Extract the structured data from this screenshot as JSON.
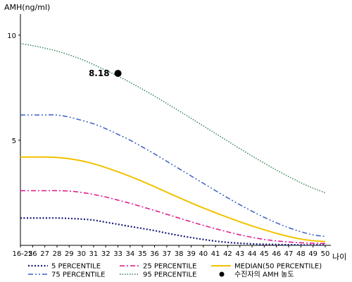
{
  "chart_data": {
    "type": "line",
    "ylabel": "AMH(ng/ml)",
    "xlabel": "나이",
    "ylim": [
      0,
      11
    ],
    "y_ticks": [
      {
        "value": 5,
        "label": "5"
      },
      {
        "value": 10,
        "label": "10"
      }
    ],
    "categories": [
      "16-25",
      "26",
      "27",
      "28",
      "29",
      "30",
      "31",
      "32",
      "33",
      "34",
      "35",
      "36",
      "37",
      "38",
      "39",
      "40",
      "41",
      "42",
      "43",
      "44",
      "45",
      "46",
      "47",
      "48",
      "49",
      "50"
    ],
    "series": [
      {
        "name": "5 PERCENTILE",
        "color": "#1a1a7a",
        "dash": "2,2.5",
        "width": 2.2,
        "values": [
          1.3,
          1.3,
          1.3,
          1.3,
          1.28,
          1.25,
          1.2,
          1.1,
          1.0,
          0.9,
          0.8,
          0.7,
          0.58,
          0.47,
          0.37,
          0.28,
          0.2,
          0.14,
          0.1,
          0.07,
          0.05,
          0.04,
          0.03,
          0.02,
          0.02,
          0.02
        ]
      },
      {
        "name": "25 PERCENTILE",
        "color": "#e0138a",
        "dash": "7,3,2,3",
        "width": 1.5,
        "values": [
          2.6,
          2.6,
          2.6,
          2.6,
          2.58,
          2.52,
          2.42,
          2.3,
          2.15,
          2.0,
          1.83,
          1.66,
          1.48,
          1.3,
          1.12,
          0.95,
          0.79,
          0.64,
          0.5,
          0.38,
          0.28,
          0.21,
          0.16,
          0.12,
          0.1,
          0.09
        ]
      },
      {
        "name": "MEDIAN(50 PERCENTILE)",
        "color": "#f2c200",
        "dash": "",
        "width": 2,
        "values": [
          4.2,
          4.2,
          4.2,
          4.18,
          4.12,
          4.02,
          3.88,
          3.7,
          3.5,
          3.28,
          3.04,
          2.79,
          2.53,
          2.27,
          2.02,
          1.78,
          1.55,
          1.33,
          1.12,
          0.92,
          0.74,
          0.57,
          0.42,
          0.3,
          0.22,
          0.18
        ]
      },
      {
        "name": "75 PERCENTILE",
        "color": "#3b5fc4",
        "dash": "7,3,2,3,2,3",
        "width": 1.5,
        "values": [
          6.2,
          6.2,
          6.2,
          6.2,
          6.1,
          5.95,
          5.78,
          5.55,
          5.28,
          5.0,
          4.68,
          4.35,
          4.0,
          3.65,
          3.3,
          2.95,
          2.6,
          2.26,
          1.93,
          1.62,
          1.33,
          1.07,
          0.84,
          0.65,
          0.5,
          0.42
        ]
      },
      {
        "name": "95 PERCENTILE",
        "color": "#2e7d4f",
        "dash": "1.5,2",
        "width": 1.4,
        "values": [
          9.6,
          9.5,
          9.38,
          9.24,
          9.06,
          8.85,
          8.6,
          8.33,
          8.05,
          7.75,
          7.43,
          7.1,
          6.75,
          6.4,
          6.04,
          5.68,
          5.32,
          4.96,
          4.6,
          4.25,
          3.91,
          3.58,
          3.27,
          2.98,
          2.72,
          2.5
        ]
      }
    ],
    "marker": {
      "name": "수진자의 AMH 농도",
      "x": "33",
      "y": 8.18,
      "label": "8.18",
      "color": "#000000"
    },
    "legend_position": "bottom",
    "legend": [
      {
        "series": "5 PERCENTILE",
        "label": "5 PERCENTILE"
      },
      {
        "series": "25 PERCENTILE",
        "label": "25 PERCENTILE"
      },
      {
        "series": "MEDIAN(50 PERCENTILE)",
        "label": "MEDIAN(50 PERCENTILE)"
      },
      {
        "series": "75 PERCENTILE",
        "label": "75 PERCENTILE"
      },
      {
        "series": "95 PERCENTILE",
        "label": "95 PERCENTILE"
      },
      {
        "series": "marker",
        "label": "수진자의 AMH 농도"
      }
    ]
  }
}
